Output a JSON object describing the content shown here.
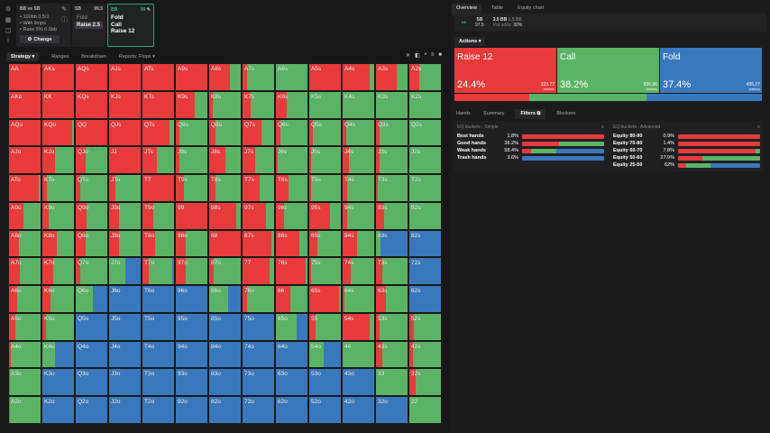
{
  "colors": {
    "raise": "#e93a3c",
    "call": "#5bb466",
    "fold": "#3a78bd"
  },
  "sidebar_icons": [
    "settings-icon",
    "grid-icon",
    "gamepad-icon",
    "text-cursor-icon"
  ],
  "spot": {
    "title": "BB vs SB",
    "lines": [
      "• 100bb 0.5/1",
      "• With limps",
      "• Rake 5% 0.6bb"
    ],
    "change_label": "Change"
  },
  "sb_node": {
    "pos": "SB",
    "stack": "99.5",
    "options": [
      "Fold",
      "Raise 2.5"
    ],
    "selected": 1
  },
  "bb_node": {
    "pos": "BB",
    "stack": "99",
    "options": [
      "Fold",
      "Call",
      "Raise 12"
    ]
  },
  "subtabs": [
    "Strategy ▾",
    "Ranges",
    "Breakdown",
    "Reports: Flops ▾"
  ],
  "right": {
    "tabs": [
      "Overview",
      "Table",
      "Equity chart"
    ],
    "info": {
      "pos": "SB",
      "stack": "97.5",
      "pot": "3.5 BB",
      "pot2": "1.5 BB",
      "odds_label": "Pot odds:",
      "odds": "30%"
    },
    "actions_label": "Actions ▾",
    "actions": [
      {
        "name": "Raise 12",
        "pct": "24.4%",
        "combos": "323.77",
        "combos_label": "combos",
        "value": 24.4
      },
      {
        "name": "Call",
        "pct": "38.2%",
        "combos": "506.96",
        "combos_label": "combos",
        "value": 38.2
      },
      {
        "name": "Fold",
        "pct": "37.4%",
        "combos": "495.27",
        "combos_label": "combos",
        "value": 37.4
      }
    ],
    "bottom_tabs": [
      "Hands",
      "Summary",
      "Filters",
      "Blockers"
    ],
    "simple": {
      "title": "EQ buckets - Simple",
      "rows": [
        {
          "label": "Best hands",
          "pct": "1.8%",
          "mix": [
            1,
            0,
            0
          ]
        },
        {
          "label": "Good hands",
          "pct": "36.2%",
          "mix": [
            0.45,
            0.55,
            0
          ]
        },
        {
          "label": "Weak hands",
          "pct": "58.4%",
          "mix": [
            0.11,
            0.31,
            0.58
          ]
        },
        {
          "label": "Trash hands",
          "pct": "3.6%",
          "mix": [
            0,
            0,
            1
          ]
        }
      ]
    },
    "advanced": {
      "title": "EQ buckets - Advanced",
      "rows": [
        {
          "label": "Equity 80-90",
          "pct": "0.9%",
          "mix": [
            1,
            0,
            0
          ]
        },
        {
          "label": "Equity 70-80",
          "pct": "1.4%",
          "mix": [
            1,
            0,
            0
          ]
        },
        {
          "label": "Equity 60-70",
          "pct": "7.8%",
          "mix": [
            0.94,
            0.06,
            0
          ]
        },
        {
          "label": "Equity 50-60",
          "pct": "27.9%",
          "mix": [
            0.3,
            0.7,
            0
          ]
        },
        {
          "label": "Equity 25-50",
          "pct": "62%",
          "mix": [
            0.1,
            0.3,
            0.6
          ]
        }
      ]
    }
  },
  "grid": [
    [
      [
        "AA",
        1,
        0
      ],
      [
        "AKs",
        1,
        0
      ],
      [
        "AQs",
        1,
        0
      ],
      [
        "AJs",
        1,
        0
      ],
      [
        "ATs",
        1,
        0
      ],
      [
        "A9s",
        1,
        0
      ],
      [
        "A8s",
        0.65,
        0.35
      ],
      [
        "A7s",
        0.15,
        0.85
      ],
      [
        "A6s",
        0,
        1
      ],
      [
        "A5s",
        1,
        0
      ],
      [
        "A4s",
        0.85,
        0.15
      ],
      [
        "A3s",
        0.65,
        0.35
      ],
      [
        "A2s",
        0.3,
        0.7
      ]
    ],
    [
      [
        "AKo",
        1,
        0
      ],
      [
        "KK",
        1,
        0
      ],
      [
        "KQs",
        1,
        0
      ],
      [
        "KJs",
        1,
        0
      ],
      [
        "KTs",
        1,
        0
      ],
      [
        "K9s",
        0.6,
        0.4
      ],
      [
        "K8s",
        0.1,
        0.9
      ],
      [
        "K7s",
        0.25,
        0.75
      ],
      [
        "K6s",
        0.35,
        0.65
      ],
      [
        "K5s",
        0,
        1
      ],
      [
        "K4s",
        0,
        1
      ],
      [
        "K3s",
        0,
        1
      ],
      [
        "K2s",
        0,
        1
      ]
    ],
    [
      [
        "AQo",
        1,
        0
      ],
      [
        "KQo",
        0.95,
        0.05
      ],
      [
        "QQ",
        1,
        0
      ],
      [
        "QJs",
        1,
        0
      ],
      [
        "QTs",
        0.85,
        0.15
      ],
      [
        "Q9s",
        0.1,
        0.9
      ],
      [
        "Q8s",
        0.2,
        0.8
      ],
      [
        "Q7s",
        0.6,
        0.4
      ],
      [
        "Q6s",
        0.15,
        0.85
      ],
      [
        "Q5s",
        0.1,
        0.9
      ],
      [
        "Q4s",
        0.1,
        0.9
      ],
      [
        "Q3s",
        0.1,
        0.9
      ],
      [
        "Q2s",
        0,
        1
      ]
    ],
    [
      [
        "AJo",
        1,
        0
      ],
      [
        "KJo",
        0.4,
        0.6
      ],
      [
        "QJo",
        0.3,
        0.7
      ],
      [
        "JJ",
        1,
        0
      ],
      [
        "JTs",
        0.45,
        0.55
      ],
      [
        "J9s",
        0.12,
        0.88
      ],
      [
        "J8s",
        0.5,
        0.5
      ],
      [
        "J7s",
        0.4,
        0.6
      ],
      [
        "J6s",
        0.05,
        0.95
      ],
      [
        "J5s",
        0.05,
        0.95
      ],
      [
        "J4s",
        0.2,
        0.8
      ],
      [
        "J3s",
        0.1,
        0.9
      ],
      [
        "J2s",
        0,
        1
      ]
    ],
    [
      [
        "ATo",
        0.95,
        0.05
      ],
      [
        "KTo",
        0.15,
        0.85
      ],
      [
        "QTo",
        0.15,
        0.85
      ],
      [
        "JTo",
        0.2,
        0.8
      ],
      [
        "TT",
        1,
        0
      ],
      [
        "T9s",
        0.25,
        0.75
      ],
      [
        "T8s",
        0.2,
        0.8
      ],
      [
        "T7s",
        0.55,
        0.45
      ],
      [
        "T6s",
        0.4,
        0.6
      ],
      [
        "T5s",
        0.05,
        0.95
      ],
      [
        "T4s",
        0.15,
        0.85
      ],
      [
        "T3s",
        0.05,
        0.95
      ],
      [
        "T2s",
        0,
        1
      ]
    ],
    [
      [
        "A9o",
        0.45,
        0.55
      ],
      [
        "K9o",
        0.2,
        0.8
      ],
      [
        "Q9o",
        0.35,
        0.65
      ],
      [
        "J9o",
        0.3,
        0.7
      ],
      [
        "T9o",
        0.35,
        0.65
      ],
      [
        "99",
        1,
        0
      ],
      [
        "98s",
        0.85,
        0.15
      ],
      [
        "97s",
        0.75,
        0.25
      ],
      [
        "96s",
        0.25,
        0.75
      ],
      [
        "95s",
        0.65,
        0.35
      ],
      [
        "94s",
        0.15,
        0.85
      ],
      [
        "93s",
        0.25,
        0.75
      ],
      [
        "92s",
        0,
        1
      ]
    ],
    [
      [
        "A8o",
        0.3,
        0.7
      ],
      [
        "K8o",
        0.45,
        0.55
      ],
      [
        "Q8o",
        0.3,
        0.7
      ],
      [
        "J8o",
        0.3,
        0.7
      ],
      [
        "T8o",
        0.4,
        0.6
      ],
      [
        "98o",
        0.3,
        0.7
      ],
      [
        "88",
        1,
        0
      ],
      [
        "87s",
        0.9,
        0.1
      ],
      [
        "86s",
        0.75,
        0.25
      ],
      [
        "85s",
        0.25,
        0.75
      ],
      [
        "84s",
        0.45,
        0.55
      ],
      [
        "83s",
        0,
        0.15
      ],
      [
        "82s",
        0,
        0
      ]
    ],
    [
      [
        "A7o",
        0.35,
        0.65
      ],
      [
        "K7o",
        0.35,
        0.65
      ],
      [
        "Q7o",
        0.15,
        0.85
      ],
      [
        "J7o",
        0,
        0.5
      ],
      [
        "T7o",
        0.2,
        0.75
      ],
      [
        "97o",
        0.3,
        0.7
      ],
      [
        "87o",
        0.15,
        0.85
      ],
      [
        "77",
        0.85,
        0.15
      ],
      [
        "76s",
        0.95,
        0.05
      ],
      [
        "75s",
        0.05,
        0.95
      ],
      [
        "74s",
        0.25,
        0.75
      ],
      [
        "73s",
        0.2,
        0.8
      ],
      [
        "72s",
        0,
        0
      ]
    ],
    [
      [
        "A6o",
        0.25,
        0.75
      ],
      [
        "K6o",
        0.25,
        0.75
      ],
      [
        "Q6o",
        0,
        0.55
      ],
      [
        "J6o",
        0,
        0
      ],
      [
        "T6o",
        0,
        0
      ],
      [
        "96o",
        0,
        0
      ],
      [
        "86o",
        0,
        0.6
      ],
      [
        "76o",
        0.15,
        0.85
      ],
      [
        "66",
        0.45,
        0.55
      ],
      [
        "65s",
        0.95,
        0.05
      ],
      [
        "64s",
        0.05,
        0.95
      ],
      [
        "63s",
        0.3,
        0.7
      ],
      [
        "62s",
        0,
        0
      ]
    ],
    [
      [
        "A5o",
        0.2,
        0.8
      ],
      [
        "K5o",
        0.1,
        0.9
      ],
      [
        "Q5o",
        0,
        0
      ],
      [
        "J5o",
        0,
        0
      ],
      [
        "T5o",
        0,
        0
      ],
      [
        "95o",
        0,
        0
      ],
      [
        "85o",
        0,
        0
      ],
      [
        "75o",
        0,
        0
      ],
      [
        "65o",
        0,
        0.65
      ],
      [
        "55",
        0.2,
        0.8
      ],
      [
        "54s",
        0.85,
        0.15
      ],
      [
        "53s",
        0.1,
        0.9
      ],
      [
        "52s",
        0.15,
        0.85
      ]
    ],
    [
      [
        "A4o",
        0.05,
        0.95
      ],
      [
        "K4o",
        0,
        0.4
      ],
      [
        "Q4o",
        0,
        0
      ],
      [
        "J4o",
        0,
        0
      ],
      [
        "T4o",
        0,
        0
      ],
      [
        "94o",
        0,
        0
      ],
      [
        "84o",
        0,
        0
      ],
      [
        "74o",
        0,
        0
      ],
      [
        "64o",
        0,
        0
      ],
      [
        "54o",
        0,
        0.45
      ],
      [
        "44",
        0,
        1
      ],
      [
        "43s",
        0.2,
        0.8
      ],
      [
        "42s",
        0.1,
        0.9
      ]
    ],
    [
      [
        "A3o",
        0.02,
        0.98
      ],
      [
        "K3o",
        0,
        0
      ],
      [
        "Q3o",
        0,
        0
      ],
      [
        "J3o",
        0,
        0
      ],
      [
        "T3o",
        0,
        0
      ],
      [
        "93o",
        0,
        0
      ],
      [
        "83o",
        0,
        0
      ],
      [
        "73o",
        0,
        0
      ],
      [
        "63o",
        0,
        0
      ],
      [
        "53o",
        0,
        0
      ],
      [
        "43o",
        0,
        0
      ],
      [
        "33",
        0,
        1
      ],
      [
        "32s",
        0.2,
        0.8
      ]
    ],
    [
      [
        "A2o",
        0.02,
        0.98
      ],
      [
        "K2o",
        0,
        0
      ],
      [
        "Q2o",
        0,
        0
      ],
      [
        "J2o",
        0,
        0
      ],
      [
        "T2o",
        0,
        0
      ],
      [
        "92o",
        0,
        0
      ],
      [
        "82o",
        0,
        0
      ],
      [
        "72o",
        0,
        0
      ],
      [
        "62o",
        0,
        0
      ],
      [
        "52o",
        0,
        0
      ],
      [
        "42o",
        0,
        0
      ],
      [
        "32o",
        0,
        0
      ],
      [
        "22",
        0,
        1
      ]
    ]
  ]
}
